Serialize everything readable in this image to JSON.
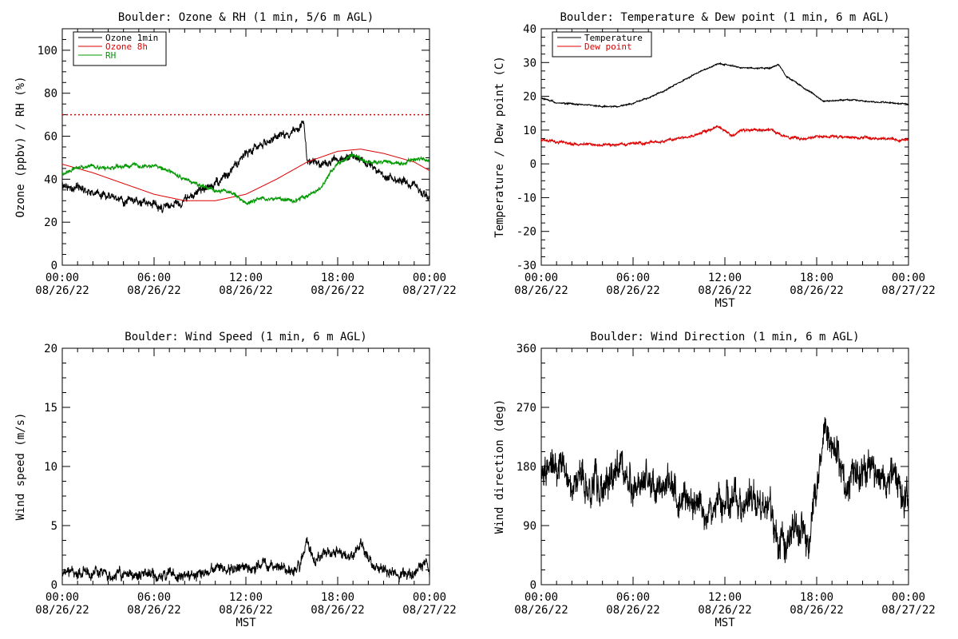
{
  "chart_data": [
    {
      "id": "ozone",
      "type": "line",
      "title": "Boulder: Ozone & RH (1 min, 5/6 m AGL)",
      "xlabel": "",
      "ylabel": "Ozone (ppbv) / RH (%)",
      "xlim_hours": [
        0,
        24
      ],
      "ylim": [
        0,
        110
      ],
      "yticks": [
        0,
        20,
        40,
        60,
        80,
        100
      ],
      "xtick_hours": [
        0,
        6,
        12,
        18,
        24
      ],
      "xticks": [
        {
          "time": "00:00",
          "date": "08/26/22"
        },
        {
          "time": "06:00",
          "date": "08/26/22"
        },
        {
          "time": "12:00",
          "date": "08/26/22"
        },
        {
          "time": "18:00",
          "date": "08/26/22"
        },
        {
          "time": "00:00",
          "date": "08/27/22"
        }
      ],
      "legend_position": "top-left",
      "reference_line": {
        "y": 70,
        "color": "#dd0000",
        "style": "dotted"
      },
      "series": [
        {
          "name": "Ozone 1min",
          "color": "#000000",
          "noise": 2.5,
          "x": [
            0,
            1,
            2,
            3,
            4,
            5,
            6,
            7,
            8,
            9,
            10,
            11,
            12,
            13,
            14,
            15,
            15.8,
            16,
            17,
            18,
            19,
            20,
            21,
            22,
            23,
            24
          ],
          "y": [
            37,
            36,
            34,
            32,
            30,
            29,
            28,
            27,
            30,
            35,
            38,
            43,
            53,
            56,
            59,
            62,
            66,
            48,
            47,
            49,
            51,
            47,
            42,
            39,
            37,
            32
          ]
        },
        {
          "name": "Ozone 8h",
          "color": "#dd0000",
          "noise": 0,
          "x": [
            0,
            2,
            4,
            6,
            8,
            10,
            12,
            14,
            16,
            18,
            19.5,
            21,
            22,
            23,
            24
          ],
          "y": [
            47,
            43,
            38,
            33,
            30,
            30,
            33,
            40,
            48,
            53,
            54,
            52,
            50,
            48,
            44
          ]
        },
        {
          "name": "RH",
          "color": "#009900",
          "noise": 1.2,
          "x": [
            0,
            1,
            2,
            3,
            4,
            5,
            6,
            7,
            8,
            9,
            10,
            11,
            12,
            13,
            14,
            15,
            16,
            17,
            18,
            19,
            20,
            21,
            22,
            23,
            23.5,
            24
          ],
          "y": [
            43,
            45,
            46,
            45,
            46,
            46,
            46,
            44,
            40,
            37,
            35,
            34,
            29,
            31,
            31,
            30,
            32,
            37,
            48,
            51,
            48,
            48,
            47,
            49,
            50,
            48
          ]
        }
      ]
    },
    {
      "id": "temp",
      "type": "line",
      "title": "Boulder: Temperature & Dew point (1 min, 6 m AGL)",
      "xlabel": "MST",
      "ylabel": "Temperature / Dew point (C)",
      "xlim_hours": [
        0,
        24
      ],
      "ylim": [
        -30,
        40
      ],
      "yticks": [
        -30,
        -20,
        -10,
        0,
        10,
        20,
        30,
        40
      ],
      "xtick_hours": [
        0,
        6,
        12,
        18,
        24
      ],
      "xticks": [
        {
          "time": "00:00",
          "date": "08/26/22"
        },
        {
          "time": "06:00",
          "date": "08/26/22"
        },
        {
          "time": "12:00",
          "date": "08/26/22"
        },
        {
          "time": "18:00",
          "date": "08/26/22"
        },
        {
          "time": "00:00",
          "date": "08/27/22"
        }
      ],
      "legend_position": "top-left",
      "series": [
        {
          "name": "Temperature",
          "color": "#000000",
          "noise": 0.25,
          "x": [
            0,
            1,
            2,
            3,
            4,
            5,
            6,
            7,
            8,
            9,
            10,
            11,
            11.5,
            12,
            13,
            14,
            15,
            15.5,
            16,
            17,
            18,
            18.5,
            20,
            22,
            24
          ],
          "y": [
            19.5,
            18,
            17.8,
            17.5,
            17,
            17,
            18,
            19.5,
            21.5,
            24,
            26.5,
            28.5,
            29.5,
            29.5,
            28.5,
            28.3,
            28.3,
            29.5,
            26,
            23,
            20,
            18.5,
            19,
            18.3,
            17.7
          ]
        },
        {
          "name": "Dew point",
          "color": "#dd0000",
          "noise": 0.5,
          "x": [
            0,
            2,
            4,
            6,
            8,
            10,
            11.5,
            12,
            12.5,
            13,
            14,
            15,
            16,
            17,
            18,
            20,
            22,
            24
          ],
          "y": [
            7,
            6,
            5.5,
            6,
            6.5,
            8.5,
            11,
            10,
            8,
            10,
            10,
            10,
            8,
            7.5,
            8,
            8,
            7.5,
            7
          ]
        }
      ]
    },
    {
      "id": "wspd",
      "type": "line",
      "title": "Boulder: Wind Speed (1 min, 6 m AGL)",
      "xlabel": "MST",
      "ylabel": "Wind speed (m/s)",
      "xlim_hours": [
        0,
        24
      ],
      "ylim": [
        0,
        20
      ],
      "yticks": [
        0,
        5,
        10,
        15,
        20
      ],
      "xtick_hours": [
        0,
        6,
        12,
        18,
        24
      ],
      "xticks": [
        {
          "time": "00:00",
          "date": "08/26/22"
        },
        {
          "time": "06:00",
          "date": "08/26/22"
        },
        {
          "time": "12:00",
          "date": "08/26/22"
        },
        {
          "time": "18:00",
          "date": "08/26/22"
        },
        {
          "time": "00:00",
          "date": "08/27/22"
        }
      ],
      "series": [
        {
          "name": "",
          "color": "#000000",
          "noise": 0.6,
          "x": [
            0,
            2,
            4,
            6,
            8,
            10,
            12,
            14,
            15.5,
            16,
            16.5,
            17,
            18,
            19,
            19.5,
            20,
            21,
            22,
            23,
            23.8,
            24
          ],
          "y": [
            0.9,
            1.0,
            0.8,
            0.9,
            0.8,
            1.2,
            1.5,
            1.5,
            1.2,
            3.5,
            2.0,
            2.5,
            3.0,
            2.2,
            3.5,
            2.0,
            1.2,
            1.0,
            0.8,
            2.0,
            0.8
          ]
        }
      ]
    },
    {
      "id": "wdir",
      "type": "line",
      "title": "Boulder: Wind Direction (1 min, 6 m AGL)",
      "xlabel": "MST",
      "ylabel": "Wind direction (deg)",
      "xlim_hours": [
        0,
        24
      ],
      "ylim": [
        0,
        360
      ],
      "yticks": [
        0,
        90,
        180,
        270,
        360
      ],
      "xtick_hours": [
        0,
        6,
        12,
        18,
        24
      ],
      "xticks": [
        {
          "time": "00:00",
          "date": "08/26/22"
        },
        {
          "time": "06:00",
          "date": "08/26/22"
        },
        {
          "time": "12:00",
          "date": "08/26/22"
        },
        {
          "time": "18:00",
          "date": "08/26/22"
        },
        {
          "time": "00:00",
          "date": "08/27/22"
        }
      ],
      "series": [
        {
          "name": "",
          "color": "#000000",
          "noise": 35,
          "x": [
            0,
            1,
            2,
            3,
            4,
            5,
            6,
            7,
            8,
            9,
            10,
            11,
            12,
            13,
            14,
            15,
            15.5,
            16,
            16.5,
            17,
            17.5,
            18,
            18.5,
            19,
            20,
            21,
            22,
            23,
            24
          ],
          "y": [
            180,
            190,
            160,
            150,
            150,
            170,
            150,
            150,
            150,
            140,
            125,
            120,
            125,
            125,
            125,
            120,
            50,
            60,
            90,
            80,
            60,
            170,
            220,
            215,
            140,
            190,
            160,
            170,
            120
          ]
        }
      ]
    }
  ]
}
